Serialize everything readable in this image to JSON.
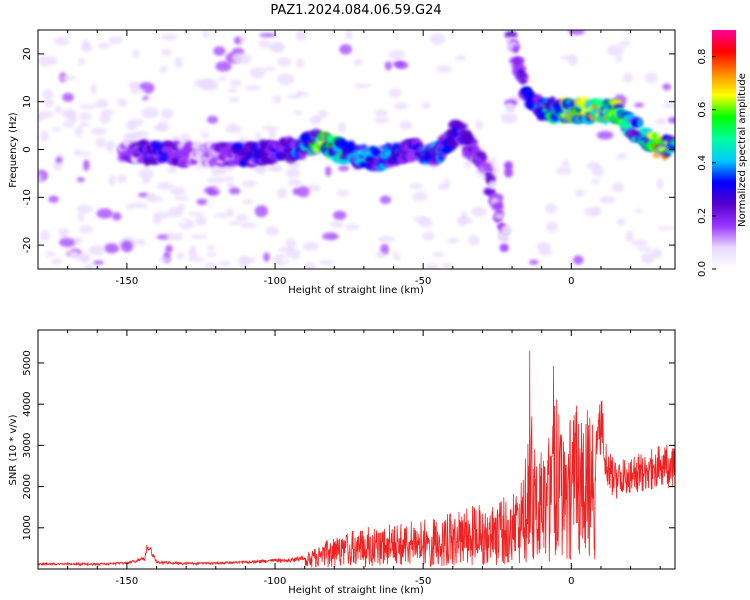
{
  "title": "PAZ1.2024.084.06.59.G24",
  "colors": {
    "snr_line": "#ee2222",
    "axis": "#000000"
  },
  "chart_data": [
    {
      "type": "heatmap",
      "xlabel": "Height of straight line (km)",
      "ylabel": "Frequency (Hz)",
      "xlim": [
        -180,
        35
      ],
      "ylim": [
        -25,
        25
      ],
      "x_ticks": [
        -150,
        -100,
        -50,
        0
      ],
      "x_tick_labels": [
        "-150",
        "-100",
        "-50",
        "0"
      ],
      "y_ticks": [
        -20,
        -10,
        0,
        10,
        20
      ],
      "y_tick_labels": [
        "-20",
        "-10",
        "0",
        "10",
        "20"
      ],
      "colorbar": {
        "label": "Normalized spectral amplitude",
        "range": [
          0,
          0.9
        ],
        "ticks": [
          0.0,
          0.2,
          0.4,
          0.6,
          0.8
        ],
        "tick_labels": [
          "0.0",
          "0.2",
          "0.4",
          "0.6",
          "0.8"
        ],
        "colormap": [
          "#ffffff",
          "#e8d8ff",
          "#9933ff",
          "#5500cc",
          "#0000ff",
          "#00ccff",
          "#00ff99",
          "#00ff00",
          "#ffff00",
          "#ff8800",
          "#ff0000",
          "#ff0099"
        ]
      },
      "ridge": [
        {
          "x": -152,
          "y": 0,
          "amp": 0.15
        },
        {
          "x": -140,
          "y": -1,
          "amp": 0.35
        },
        {
          "x": -125,
          "y": -1,
          "amp": 0.12
        },
        {
          "x": -110,
          "y": -1,
          "amp": 0.3
        },
        {
          "x": -95,
          "y": 0,
          "amp": 0.3
        },
        {
          "x": -85,
          "y": 2,
          "amp": 0.6
        },
        {
          "x": -75,
          "y": -1,
          "amp": 0.45
        },
        {
          "x": -65,
          "y": -2,
          "amp": 0.4
        },
        {
          "x": -55,
          "y": 0,
          "amp": 0.35
        },
        {
          "x": -45,
          "y": -1,
          "amp": 0.4
        },
        {
          "x": -38,
          "y": 4,
          "amp": 0.3
        },
        {
          "x": -30,
          "y": -3,
          "amp": 0.25
        },
        {
          "x": -26,
          "y": -10,
          "amp": 0.2
        },
        {
          "x": -22,
          "y": -20,
          "amp": 0.15
        },
        {
          "x": -20,
          "y": 22,
          "amp": 0.2
        },
        {
          "x": -17,
          "y": 15,
          "amp": 0.3
        },
        {
          "x": -13,
          "y": 9,
          "amp": 0.35
        },
        {
          "x": -5,
          "y": 8,
          "amp": 0.6
        },
        {
          "x": 5,
          "y": 8,
          "amp": 0.7
        },
        {
          "x": 15,
          "y": 8,
          "amp": 0.65
        },
        {
          "x": 22,
          "y": 4,
          "amp": 0.4
        },
        {
          "x": 30,
          "y": 0,
          "amp": 0.8
        },
        {
          "x": 35,
          "y": 1,
          "amp": 0.5
        }
      ]
    },
    {
      "type": "line",
      "xlabel": "Height of straight line (km)",
      "ylabel": "SNR (10 * v/v)",
      "xlim": [
        -180,
        35
      ],
      "ylim": [
        0,
        5800
      ],
      "x_ticks": [
        -150,
        -100,
        -50,
        0
      ],
      "x_tick_labels": [
        "-150",
        "-100",
        "-50",
        "0"
      ],
      "y_ticks": [
        1000,
        2000,
        3000,
        4000,
        5000
      ],
      "y_tick_labels": [
        "1000",
        "2000",
        "3000",
        "4000",
        "5000"
      ],
      "series": [
        {
          "x": [
            -180,
            -170,
            -160,
            -150,
            -144,
            -143,
            -140,
            -130,
            -120,
            -110,
            -100,
            -95,
            -90,
            -85,
            -80,
            -75,
            -70,
            -65,
            -60,
            -55,
            -50,
            -45,
            -40,
            -35,
            -30,
            -25,
            -20,
            -17,
            -15,
            -14,
            -13,
            -12,
            -10,
            -8,
            -6,
            -4,
            -2,
            0,
            2,
            4,
            6,
            8,
            10,
            12,
            15,
            20,
            25,
            30,
            35
          ],
          "y": [
            150,
            150,
            140,
            170,
            300,
            700,
            200,
            160,
            170,
            200,
            250,
            250,
            350,
            600,
            800,
            900,
            1000,
            1100,
            1100,
            1150,
            1200,
            1300,
            1400,
            1500,
            1600,
            1700,
            1800,
            2200,
            3000,
            5700,
            4000,
            2500,
            3500,
            2800,
            5200,
            3600,
            3000,
            3800,
            4000,
            3400,
            4100,
            3200,
            4300,
            3000,
            2600,
            2800,
            2900,
            3000,
            3050
          ]
        }
      ]
    }
  ]
}
